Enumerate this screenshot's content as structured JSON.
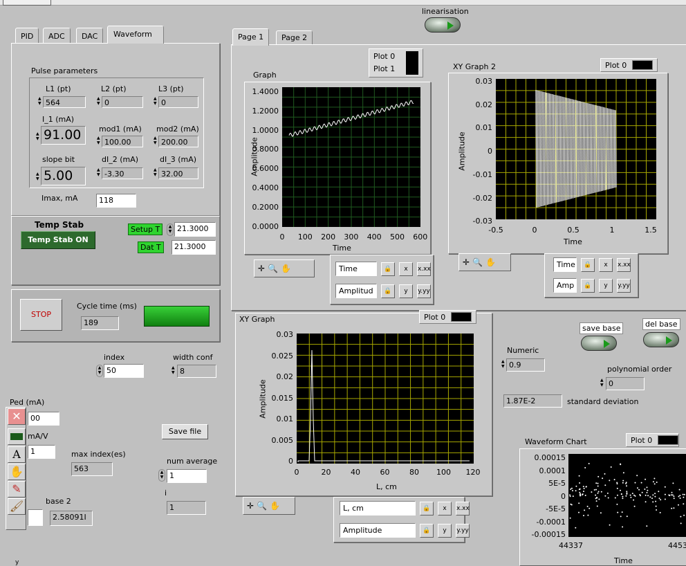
{
  "top": {
    "linearisation_label": "linearisation"
  },
  "left_tabs": [
    "PID",
    "ADC",
    "DAC",
    "Waveform"
  ],
  "pulse": {
    "title": "Pulse parameters",
    "L1_label": "L1 (pt)",
    "L1": "564",
    "L2_label": "L2 (pt)",
    "L2": "0",
    "L3_label": "L3 (pt)",
    "L3": "0",
    "I1_label": "I_1 (mA)",
    "I1": "91.00",
    "mod1_label": "mod1 (mA)",
    "mod1": "100.00",
    "mod2_label": "mod2 (mA)",
    "mod2": "200.00",
    "slope_label": "slope bit",
    "slope": "5.00",
    "dI2_label": "dI_2 (mA)",
    "dI2": "-3.30",
    "dI3_label": "dI_3 (mA)",
    "dI3": "32.00",
    "imax_label": "Imax, mA",
    "imax": "118"
  },
  "temp": {
    "title": "Temp Stab",
    "button": "Temp Stab ON",
    "setup_label": "Setup T",
    "setup": "21.3000",
    "dat_label": "Dat T",
    "dat": "21.3000"
  },
  "cycle": {
    "stop": "STOP",
    "label": "Cycle time (ms)",
    "value": "189"
  },
  "lower": {
    "index_label": "index",
    "index": "50",
    "width_label": "width conf",
    "width": "8",
    "ped_label": "Ped (mA)",
    "ped": "00",
    "mav_label": "mA/V",
    "mav": "1",
    "save_file": "Save file",
    "maxidx_label": "max index(es)",
    "maxidx": "563",
    "numavg_label": "num average",
    "numavg": "1",
    "i_label": "i",
    "i": "1",
    "base2_label": "base 2",
    "base2": "2.58091I"
  },
  "right_tabs": [
    "Page 1",
    "Page 2"
  ],
  "graph1": {
    "title": "Graph",
    "legend": [
      "Plot 0",
      "Plot 1"
    ],
    "ylabel": "Amplitude",
    "xlabel": "Time",
    "yticks": [
      "1.4000",
      "1.2000",
      "1.0000",
      "0.8000",
      "0.6000",
      "0.4000",
      "0.2000",
      "0.0000"
    ],
    "xticks": [
      "0",
      "100",
      "200",
      "300",
      "400",
      "500",
      "600"
    ],
    "axis1": "Time",
    "axis2": "Amplitud"
  },
  "xy2": {
    "title": "XY Graph 2",
    "legend": "Plot 0",
    "ylabel": "Amplitude",
    "xlabel": "Time",
    "yticks": [
      "0.03",
      "0.02",
      "0.01",
      "0",
      "-0.01",
      "-0.02",
      "-0.03"
    ],
    "xticks": [
      "-0.5",
      "0",
      "0.5",
      "1",
      "1.5"
    ],
    "axis1": "Time",
    "axis2": "Amp"
  },
  "xy1": {
    "title": "XY Graph",
    "legend": "Plot 0",
    "ylabel": "Amplitude",
    "xlabel": "L, cm",
    "yticks": [
      "0.03",
      "0.025",
      "0.02",
      "0.015",
      "0.01",
      "0.005",
      "0"
    ],
    "xticks": [
      "0",
      "20",
      "40",
      "60",
      "80",
      "100",
      "120"
    ],
    "axis1": "L, cm",
    "axis2": "Amplitude"
  },
  "baseline": {
    "save_base": "save base",
    "del_base": "del base",
    "numeric_label": "Numeric",
    "numeric": "0.9",
    "poly_label": "polynomial order",
    "poly": "0",
    "std": "1.87E-2",
    "std_label": "standard deviation"
  },
  "chart": {
    "title": "Waveform Chart",
    "legend": "Plot 0",
    "yticks": [
      "0.00015",
      "0.0001",
      "5E-5",
      "0",
      "-5E-5",
      "-0.0001",
      "-0.00015"
    ],
    "xticks": [
      "44337",
      "4453"
    ],
    "xlabel": "Time"
  },
  "colors": {
    "panel": "#b4b4b4",
    "led": "#14a014",
    "grid": "#c8c800",
    "grid_green": "#1a5a1a"
  }
}
